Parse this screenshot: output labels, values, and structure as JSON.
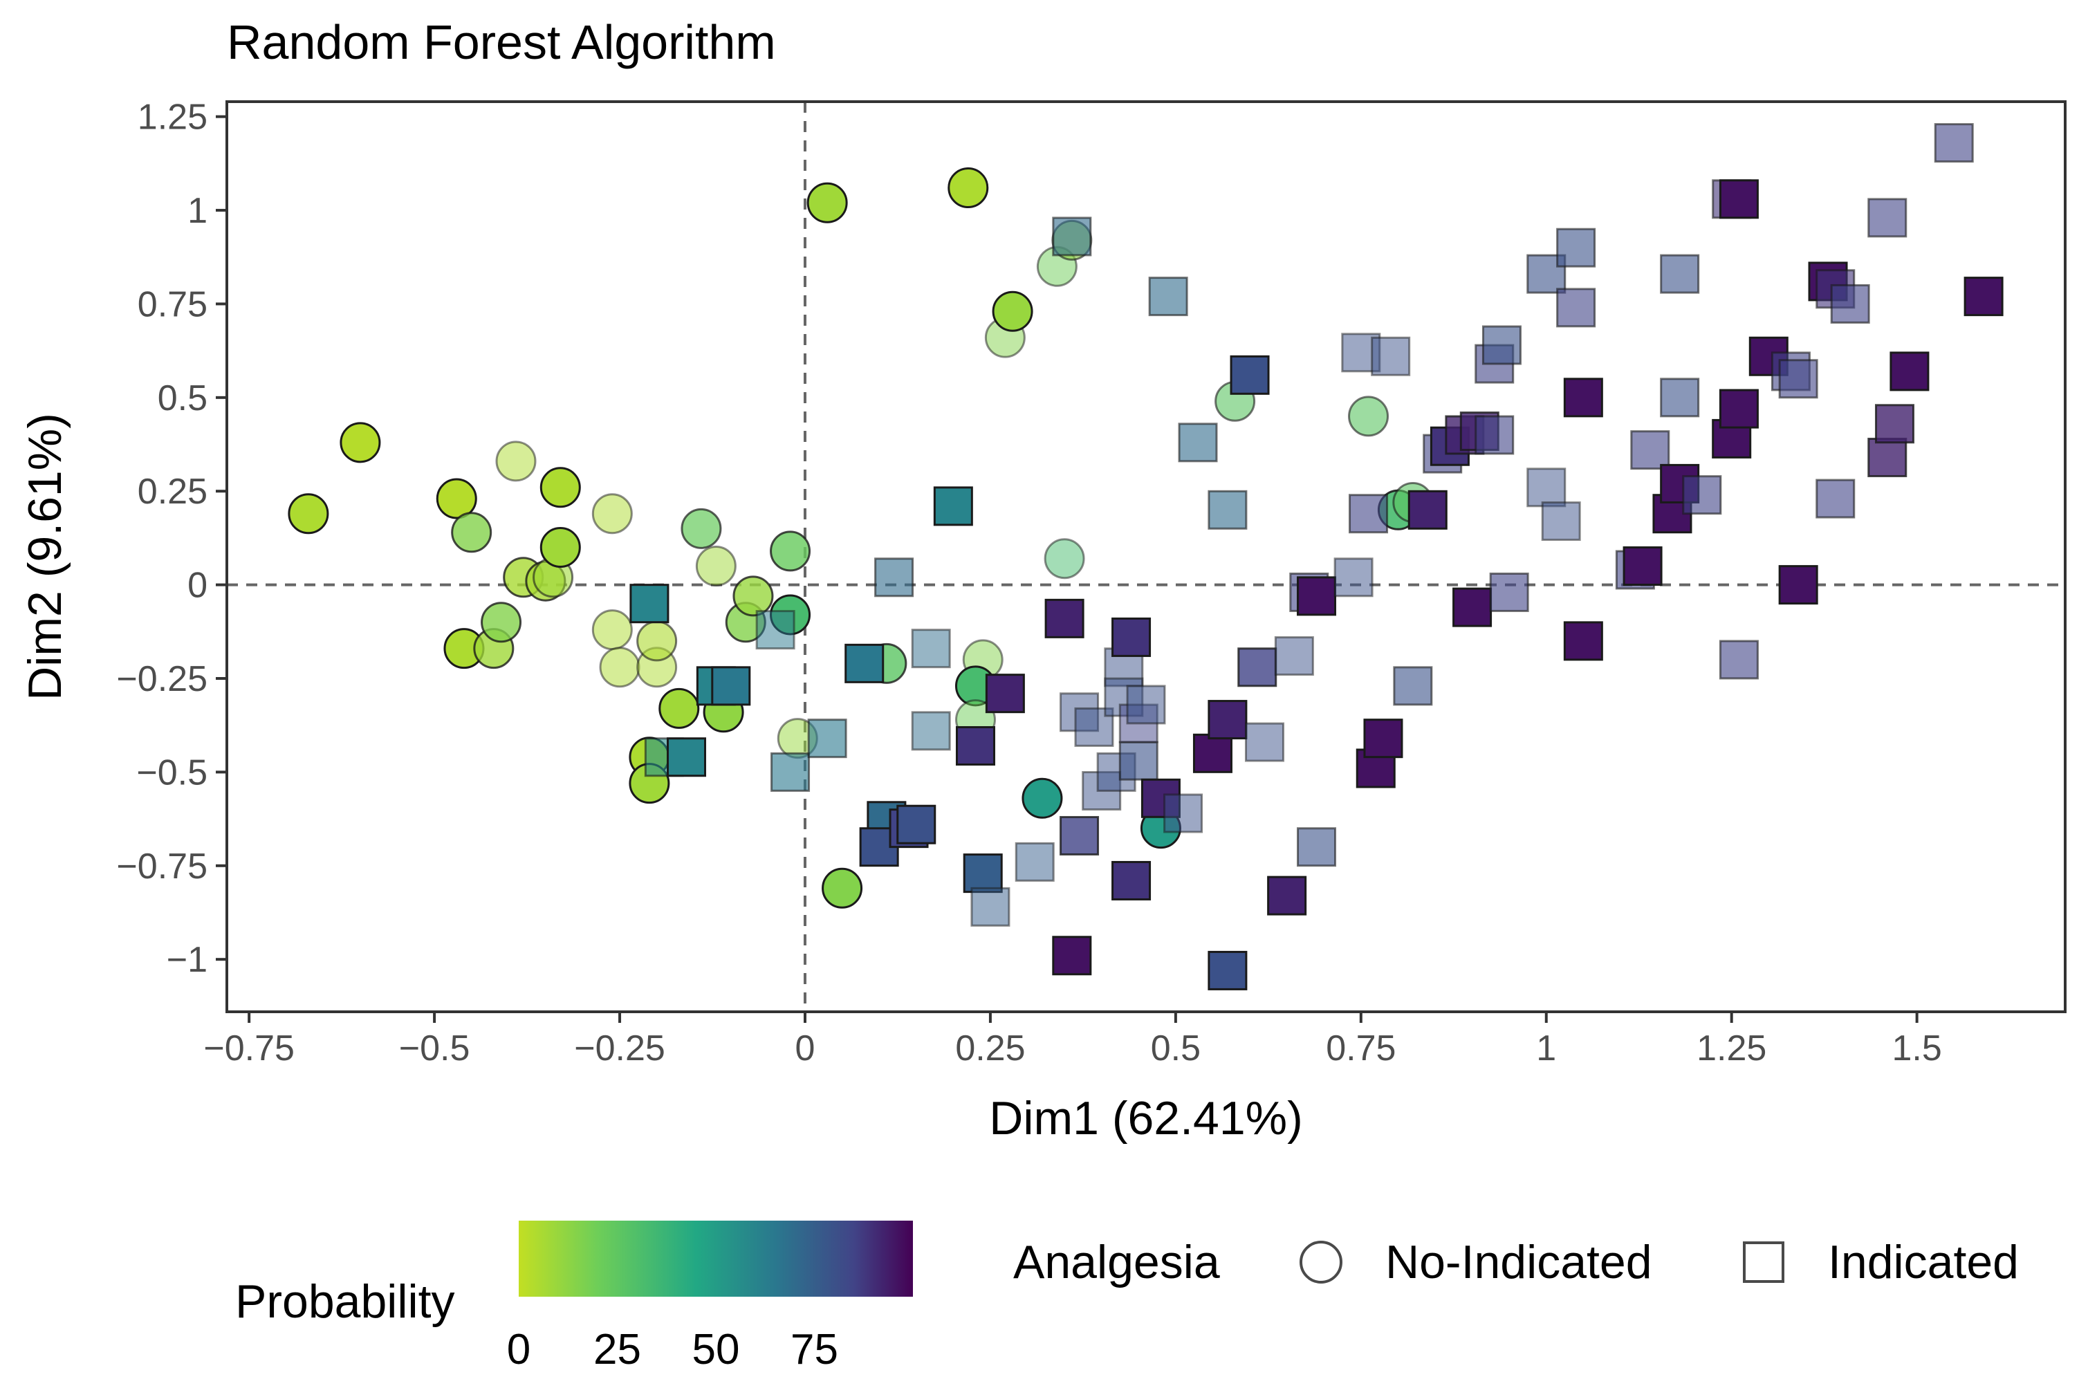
{
  "chart_data": {
    "type": "scatter",
    "title": "Random Forest Algorithm",
    "xlabel": "Dim1 (62.41%)",
    "ylabel": "Dim2 (9.61%)",
    "xlim": [
      -0.78,
      1.7
    ],
    "ylim": [
      -1.14,
      1.29
    ],
    "x_ticks": [
      -0.75,
      -0.5,
      -0.25,
      0,
      0.25,
      0.5,
      0.75,
      1,
      1.25,
      1.5
    ],
    "x_tick_labels": [
      "−0.75",
      "−0.5",
      "−0.25",
      "0",
      "0.25",
      "0.5",
      "0.75",
      "1",
      "1.25",
      "1.5"
    ],
    "y_ticks": [
      -1,
      -0.75,
      -0.5,
      -0.25,
      0,
      0.25,
      0.5,
      0.75,
      1,
      1.25
    ],
    "y_tick_labels": [
      "−1",
      "−0.75",
      "−0.5",
      "−0.25",
      "0",
      "0.25",
      "0.5",
      "0.75",
      "1",
      "1.25"
    ],
    "reference_lines": {
      "x": 0,
      "y": 0,
      "style": "dashed"
    },
    "color_scale": {
      "title": "Probability",
      "palette": "viridis-reversed",
      "stops": [
        "#c2df23",
        "#6ece58",
        "#22a884",
        "#2a788e",
        "#414487",
        "#440154"
      ],
      "range": [
        0,
        100
      ],
      "ticks": [
        0,
        25,
        50,
        75
      ],
      "tick_labels": [
        "0",
        "25",
        "50",
        "75"
      ]
    },
    "shape_legend": {
      "title": "Analgesia",
      "entries": [
        {
          "label": "No-Indicated",
          "shape": "circle"
        },
        {
          "label": "Indicated",
          "shape": "square"
        }
      ]
    },
    "series": [
      {
        "name": "No-Indicated",
        "shape": "circle",
        "points": [
          {
            "x": -0.67,
            "y": 0.19,
            "p": 5,
            "a": 1
          },
          {
            "x": -0.6,
            "y": 0.38,
            "p": 3,
            "a": 1
          },
          {
            "x": -0.47,
            "y": 0.23,
            "p": 3,
            "a": 1
          },
          {
            "x": -0.45,
            "y": 0.14,
            "p": 15,
            "a": 0.8
          },
          {
            "x": -0.46,
            "y": -0.17,
            "p": 5,
            "a": 1
          },
          {
            "x": -0.42,
            "y": -0.17,
            "p": 8,
            "a": 0.8
          },
          {
            "x": -0.41,
            "y": -0.1,
            "p": 15,
            "a": 0.8
          },
          {
            "x": -0.39,
            "y": 0.33,
            "p": 5,
            "a": 0.5
          },
          {
            "x": -0.38,
            "y": 0.02,
            "p": 6,
            "a": 0.8
          },
          {
            "x": -0.35,
            "y": 0.01,
            "p": 6,
            "a": 0.8
          },
          {
            "x": -0.34,
            "y": 0.02,
            "p": 8,
            "a": 0.6
          },
          {
            "x": -0.33,
            "y": 0.26,
            "p": 5,
            "a": 1
          },
          {
            "x": -0.33,
            "y": 0.1,
            "p": 8,
            "a": 1
          },
          {
            "x": -0.26,
            "y": 0.19,
            "p": 5,
            "a": 0.5
          },
          {
            "x": -0.26,
            "y": -0.12,
            "p": 5,
            "a": 0.5
          },
          {
            "x": -0.25,
            "y": -0.22,
            "p": 5,
            "a": 0.5
          },
          {
            "x": -0.2,
            "y": -0.22,
            "p": 5,
            "a": 0.5
          },
          {
            "x": -0.2,
            "y": -0.15,
            "p": 5,
            "a": 0.6
          },
          {
            "x": -0.21,
            "y": -0.46,
            "p": 5,
            "a": 1
          },
          {
            "x": -0.21,
            "y": -0.53,
            "p": 8,
            "a": 1
          },
          {
            "x": -0.17,
            "y": -0.33,
            "p": 8,
            "a": 1
          },
          {
            "x": -0.14,
            "y": 0.15,
            "p": 22,
            "a": 0.7
          },
          {
            "x": -0.12,
            "y": 0.05,
            "p": 8,
            "a": 0.5
          },
          {
            "x": -0.11,
            "y": -0.34,
            "p": 12,
            "a": 1
          },
          {
            "x": -0.08,
            "y": -0.1,
            "p": 15,
            "a": 0.8
          },
          {
            "x": -0.07,
            "y": -0.03,
            "p": 10,
            "a": 0.8
          },
          {
            "x": -0.02,
            "y": 0.09,
            "p": 22,
            "a": 0.8
          },
          {
            "x": -0.02,
            "y": -0.08,
            "p": 30,
            "a": 1
          },
          {
            "x": -0.01,
            "y": -0.41,
            "p": 10,
            "a": 0.5
          },
          {
            "x": 0.03,
            "y": 1.02,
            "p": 8,
            "a": 1
          },
          {
            "x": 0.05,
            "y": -0.81,
            "p": 15,
            "a": 1
          },
          {
            "x": 0.11,
            "y": -0.21,
            "p": 25,
            "a": 0.8
          },
          {
            "x": 0.22,
            "y": 1.06,
            "p": 5,
            "a": 1
          },
          {
            "x": 0.24,
            "y": -0.2,
            "p": 15,
            "a": 0.5
          },
          {
            "x": 0.23,
            "y": -0.27,
            "p": 30,
            "a": 1
          },
          {
            "x": 0.23,
            "y": -0.36,
            "p": 20,
            "a": 0.5
          },
          {
            "x": 0.27,
            "y": 0.66,
            "p": 15,
            "a": 0.5
          },
          {
            "x": 0.28,
            "y": 0.73,
            "p": 10,
            "a": 1
          },
          {
            "x": 0.32,
            "y": -0.57,
            "p": 45,
            "a": 1
          },
          {
            "x": 0.34,
            "y": 0.85,
            "p": 20,
            "a": 0.5
          },
          {
            "x": 0.36,
            "y": 0.92,
            "p": 12,
            "a": 0.6
          },
          {
            "x": 0.35,
            "y": 0.07,
            "p": 30,
            "a": 0.5
          },
          {
            "x": 0.48,
            "y": -0.65,
            "p": 45,
            "a": 1
          },
          {
            "x": 0.58,
            "y": 0.49,
            "p": 25,
            "a": 0.6
          },
          {
            "x": 0.76,
            "y": 0.45,
            "p": 25,
            "a": 0.6
          },
          {
            "x": 0.8,
            "y": 0.2,
            "p": 30,
            "a": 0.9
          },
          {
            "x": 0.82,
            "y": 0.22,
            "p": 25,
            "a": 0.6
          }
        ]
      },
      {
        "name": "Indicated",
        "shape": "square",
        "points": [
          {
            "x": -0.21,
            "y": -0.05,
            "p": 55,
            "a": 1
          },
          {
            "x": -0.19,
            "y": -0.46,
            "p": 50,
            "a": 0.6
          },
          {
            "x": -0.16,
            "y": -0.46,
            "p": 55,
            "a": 1
          },
          {
            "x": -0.12,
            "y": -0.27,
            "p": 55,
            "a": 1
          },
          {
            "x": -0.1,
            "y": -0.27,
            "p": 60,
            "a": 1
          },
          {
            "x": -0.04,
            "y": -0.12,
            "p": 60,
            "a": 0.5
          },
          {
            "x": -0.02,
            "y": -0.5,
            "p": 60,
            "a": 0.6
          },
          {
            "x": 0.03,
            "y": -0.41,
            "p": 60,
            "a": 0.6
          },
          {
            "x": 0.08,
            "y": -0.21,
            "p": 60,
            "a": 1
          },
          {
            "x": 0.11,
            "y": -0.63,
            "p": 65,
            "a": 1
          },
          {
            "x": 0.1,
            "y": -0.7,
            "p": 75,
            "a": 1
          },
          {
            "x": 0.12,
            "y": 0.02,
            "p": 65,
            "a": 0.6
          },
          {
            "x": 0.14,
            "y": -0.65,
            "p": 80,
            "a": 1
          },
          {
            "x": 0.15,
            "y": -0.64,
            "p": 75,
            "a": 1
          },
          {
            "x": 0.17,
            "y": -0.17,
            "p": 65,
            "a": 0.5
          },
          {
            "x": 0.17,
            "y": -0.39,
            "p": 65,
            "a": 0.5
          },
          {
            "x": 0.2,
            "y": 0.21,
            "p": 55,
            "a": 1
          },
          {
            "x": 0.23,
            "y": -0.43,
            "p": 85,
            "a": 1
          },
          {
            "x": 0.24,
            "y": -0.77,
            "p": 70,
            "a": 1
          },
          {
            "x": 0.25,
            "y": -0.86,
            "p": 70,
            "a": 0.5
          },
          {
            "x": 0.27,
            "y": -0.29,
            "p": 90,
            "a": 1
          },
          {
            "x": 0.31,
            "y": -0.74,
            "p": 70,
            "a": 0.5
          },
          {
            "x": 0.35,
            "y": -0.09,
            "p": 90,
            "a": 1
          },
          {
            "x": 0.36,
            "y": 0.93,
            "p": 65,
            "a": 0.6
          },
          {
            "x": 0.36,
            "y": -0.99,
            "p": 95,
            "a": 1
          },
          {
            "x": 0.37,
            "y": -0.34,
            "p": 75,
            "a": 0.5
          },
          {
            "x": 0.37,
            "y": -0.67,
            "p": 80,
            "a": 0.8
          },
          {
            "x": 0.39,
            "y": -0.38,
            "p": 75,
            "a": 0.5
          },
          {
            "x": 0.4,
            "y": -0.55,
            "p": 75,
            "a": 0.5
          },
          {
            "x": 0.42,
            "y": -0.5,
            "p": 75,
            "a": 0.5
          },
          {
            "x": 0.43,
            "y": -0.22,
            "p": 75,
            "a": 0.5
          },
          {
            "x": 0.43,
            "y": -0.3,
            "p": 75,
            "a": 0.5
          },
          {
            "x": 0.44,
            "y": -0.14,
            "p": 85,
            "a": 1
          },
          {
            "x": 0.44,
            "y": -0.79,
            "p": 85,
            "a": 1
          },
          {
            "x": 0.45,
            "y": -0.47,
            "p": 75,
            "a": 0.6
          },
          {
            "x": 0.45,
            "y": -0.37,
            "p": 80,
            "a": 0.5
          },
          {
            "x": 0.46,
            "y": -0.32,
            "p": 75,
            "a": 0.5
          },
          {
            "x": 0.48,
            "y": -0.57,
            "p": 90,
            "a": 1
          },
          {
            "x": 0.49,
            "y": 0.77,
            "p": 65,
            "a": 0.6
          },
          {
            "x": 0.51,
            "y": -0.61,
            "p": 75,
            "a": 0.5
          },
          {
            "x": 0.53,
            "y": 0.38,
            "p": 65,
            "a": 0.6
          },
          {
            "x": 0.55,
            "y": -0.45,
            "p": 95,
            "a": 1
          },
          {
            "x": 0.57,
            "y": 0.2,
            "p": 65,
            "a": 0.6
          },
          {
            "x": 0.57,
            "y": -1.03,
            "p": 75,
            "a": 1
          },
          {
            "x": 0.57,
            "y": -0.36,
            "p": 90,
            "a": 1
          },
          {
            "x": 0.6,
            "y": 0.56,
            "p": 75,
            "a": 1
          },
          {
            "x": 0.61,
            "y": -0.22,
            "p": 80,
            "a": 0.8
          },
          {
            "x": 0.62,
            "y": -0.42,
            "p": 75,
            "a": 0.5
          },
          {
            "x": 0.65,
            "y": -0.83,
            "p": 90,
            "a": 1
          },
          {
            "x": 0.66,
            "y": -0.19,
            "p": 75,
            "a": 0.5
          },
          {
            "x": 0.68,
            "y": -0.02,
            "p": 80,
            "a": 0.6
          },
          {
            "x": 0.69,
            "y": -0.03,
            "p": 95,
            "a": 1
          },
          {
            "x": 0.69,
            "y": -0.7,
            "p": 75,
            "a": 0.6
          },
          {
            "x": 0.74,
            "y": 0.02,
            "p": 75,
            "a": 0.5
          },
          {
            "x": 0.75,
            "y": 0.62,
            "p": 75,
            "a": 0.5
          },
          {
            "x": 0.76,
            "y": 0.19,
            "p": 80,
            "a": 0.6
          },
          {
            "x": 0.77,
            "y": -0.49,
            "p": 95,
            "a": 1
          },
          {
            "x": 0.78,
            "y": -0.41,
            "p": 95,
            "a": 1
          },
          {
            "x": 0.79,
            "y": 0.61,
            "p": 75,
            "a": 0.5
          },
          {
            "x": 0.82,
            "y": -0.27,
            "p": 75,
            "a": 0.6
          },
          {
            "x": 0.84,
            "y": 0.2,
            "p": 90,
            "a": 1
          },
          {
            "x": 0.86,
            "y": 0.35,
            "p": 80,
            "a": 0.6
          },
          {
            "x": 0.87,
            "y": 0.37,
            "p": 85,
            "a": 1
          },
          {
            "x": 0.89,
            "y": 0.4,
            "p": 90,
            "a": 0.8
          },
          {
            "x": 0.9,
            "y": -0.06,
            "p": 95,
            "a": 1
          },
          {
            "x": 0.91,
            "y": 0.41,
            "p": 90,
            "a": 0.8
          },
          {
            "x": 0.93,
            "y": 0.4,
            "p": 80,
            "a": 0.6
          },
          {
            "x": 0.93,
            "y": 0.59,
            "p": 80,
            "a": 0.6
          },
          {
            "x": 0.94,
            "y": 0.64,
            "p": 75,
            "a": 0.6
          },
          {
            "x": 0.95,
            "y": -0.02,
            "p": 80,
            "a": 0.6
          },
          {
            "x": 1.0,
            "y": 0.83,
            "p": 75,
            "a": 0.6
          },
          {
            "x": 1.0,
            "y": 0.26,
            "p": 75,
            "a": 0.5
          },
          {
            "x": 1.02,
            "y": 0.17,
            "p": 75,
            "a": 0.5
          },
          {
            "x": 1.04,
            "y": 0.9,
            "p": 75,
            "a": 0.6
          },
          {
            "x": 1.04,
            "y": 0.74,
            "p": 80,
            "a": 0.6
          },
          {
            "x": 1.05,
            "y": 0.5,
            "p": 95,
            "a": 1
          },
          {
            "x": 1.05,
            "y": -0.15,
            "p": 95,
            "a": 1
          },
          {
            "x": 1.12,
            "y": 0.04,
            "p": 80,
            "a": 0.6
          },
          {
            "x": 1.13,
            "y": 0.05,
            "p": 95,
            "a": 1
          },
          {
            "x": 1.14,
            "y": 0.36,
            "p": 80,
            "a": 0.6
          },
          {
            "x": 1.17,
            "y": 0.19,
            "p": 95,
            "a": 1
          },
          {
            "x": 1.18,
            "y": 0.27,
            "p": 95,
            "a": 1
          },
          {
            "x": 1.18,
            "y": 0.5,
            "p": 75,
            "a": 0.6
          },
          {
            "x": 1.18,
            "y": 0.83,
            "p": 75,
            "a": 0.6
          },
          {
            "x": 1.21,
            "y": 0.24,
            "p": 80,
            "a": 0.6
          },
          {
            "x": 1.25,
            "y": 0.39,
            "p": 95,
            "a": 1
          },
          {
            "x": 1.26,
            "y": 0.47,
            "p": 95,
            "a": 1
          },
          {
            "x": 1.25,
            "y": 1.03,
            "p": 85,
            "a": 0.6
          },
          {
            "x": 1.26,
            "y": 1.03,
            "p": 95,
            "a": 1
          },
          {
            "x": 1.26,
            "y": -0.2,
            "p": 80,
            "a": 0.6
          },
          {
            "x": 1.3,
            "y": 0.61,
            "p": 95,
            "a": 1
          },
          {
            "x": 1.33,
            "y": 0.57,
            "p": 80,
            "a": 0.6
          },
          {
            "x": 1.34,
            "y": 0.55,
            "p": 80,
            "a": 0.6
          },
          {
            "x": 1.34,
            "y": 0.0,
            "p": 95,
            "a": 1
          },
          {
            "x": 1.38,
            "y": 0.81,
            "p": 95,
            "a": 1
          },
          {
            "x": 1.39,
            "y": 0.79,
            "p": 85,
            "a": 0.6
          },
          {
            "x": 1.39,
            "y": 0.23,
            "p": 80,
            "a": 0.6
          },
          {
            "x": 1.41,
            "y": 0.75,
            "p": 80,
            "a": 0.6
          },
          {
            "x": 1.46,
            "y": 0.98,
            "p": 80,
            "a": 0.6
          },
          {
            "x": 1.46,
            "y": 0.34,
            "p": 90,
            "a": 0.8
          },
          {
            "x": 1.47,
            "y": 0.43,
            "p": 90,
            "a": 0.8
          },
          {
            "x": 1.49,
            "y": 0.57,
            "p": 95,
            "a": 1
          },
          {
            "x": 1.55,
            "y": 1.18,
            "p": 80,
            "a": 0.6
          },
          {
            "x": 1.59,
            "y": 0.77,
            "p": 95,
            "a": 1
          }
        ]
      }
    ]
  }
}
